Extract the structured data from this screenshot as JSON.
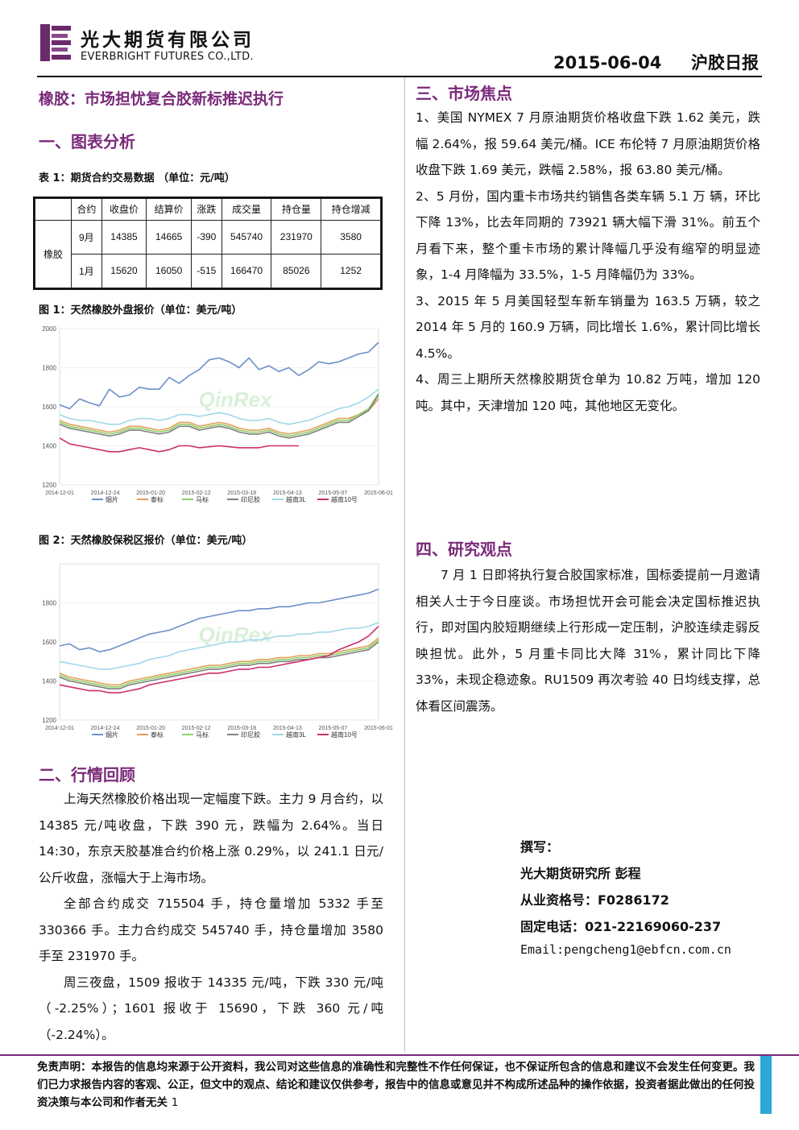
{
  "header": {
    "company_cn": "光大期货有限公司",
    "company_en": "EVERBRIGHT FUTURES CO.,LTD.",
    "date": "2015-06-04",
    "report_type": "沪胶日报"
  },
  "subtitle": "橡胶：市场担忧复合胶新标推迟执行",
  "section1": {
    "title": "一、图表分析",
    "table_caption": "表 1：期货合约交易数据  （单位：元/吨）",
    "table": {
      "headers": [
        "合约",
        "收盘价",
        "结算价",
        "涨跌",
        "成交量",
        "持仓量",
        "持仓增减"
      ],
      "row_label": "橡胶",
      "rows": [
        [
          "9月",
          "14385",
          "14665",
          "-390",
          "545740",
          "231970",
          "3580"
        ],
        [
          "1月",
          "15620",
          "16050",
          "-515",
          "166470",
          "85026",
          "1252"
        ]
      ]
    },
    "fig1_caption": "图 1：天然橡胶外盘报价（单位：美元/吨）",
    "fig2_caption": "图 2：天然橡胶保税区报价（单位：美元/吨）"
  },
  "chart_data": [
    {
      "type": "line",
      "title": "",
      "x_tick_labels": [
        "2014-12-01",
        "2014-12-24",
        "2015-01-20",
        "2015-02-12",
        "2015-03-18",
        "2015-04-13",
        "2015-05-07",
        "2015-06-01"
      ],
      "ylim": [
        1200,
        2000
      ],
      "y_ticks": [
        1200,
        1400,
        1600,
        1800,
        2000
      ],
      "legend": "bottom",
      "watermark": "QinRex",
      "series": [
        {
          "name": "烟片",
          "color": "#6d8fc9",
          "values": [
            1610,
            1590,
            1640,
            1620,
            1605,
            1690,
            1650,
            1660,
            1700,
            1690,
            1690,
            1750,
            1720,
            1760,
            1790,
            1840,
            1850,
            1830,
            1800,
            1850,
            1790,
            1810,
            1780,
            1800,
            1760,
            1790,
            1830,
            1820,
            1830,
            1850,
            1870,
            1880,
            1930
          ]
        },
        {
          "name": "泰标",
          "color": "#e3a05a",
          "values": [
            1530,
            1510,
            1500,
            1490,
            1480,
            1470,
            1480,
            1500,
            1500,
            1490,
            1480,
            1490,
            1520,
            1520,
            1500,
            1510,
            1520,
            1510,
            1490,
            1480,
            1480,
            1490,
            1470,
            1460,
            1470,
            1480,
            1500,
            1520,
            1540,
            1540,
            1560,
            1580,
            1640
          ]
        },
        {
          "name": "马标",
          "color": "#8ed06a",
          "values": [
            1520,
            1500,
            1490,
            1480,
            1470,
            1460,
            1470,
            1490,
            1490,
            1480,
            1470,
            1480,
            1510,
            1510,
            1490,
            1500,
            1510,
            1500,
            1480,
            1470,
            1470,
            1480,
            1460,
            1450,
            1460,
            1470,
            1490,
            1510,
            1530,
            1530,
            1560,
            1590,
            1670
          ]
        },
        {
          "name": "印尼胶",
          "color": "#7f7f7f",
          "values": [
            1510,
            1490,
            1480,
            1470,
            1460,
            1450,
            1460,
            1480,
            1480,
            1470,
            1460,
            1470,
            1500,
            1500,
            1480,
            1490,
            1500,
            1490,
            1470,
            1460,
            1460,
            1470,
            1450,
            1440,
            1450,
            1460,
            1480,
            1500,
            1520,
            1520,
            1550,
            1580,
            1660
          ]
        },
        {
          "name": "越南3L",
          "color": "#9fd8e8",
          "values": [
            1560,
            1540,
            1530,
            1530,
            1520,
            1510,
            1510,
            1530,
            1540,
            1540,
            1530,
            1540,
            1560,
            1560,
            1550,
            1560,
            1570,
            1560,
            1540,
            1530,
            1530,
            1540,
            1520,
            1510,
            1520,
            1530,
            1550,
            1570,
            1590,
            1600,
            1620,
            1650,
            1690
          ]
        },
        {
          "name": "越南10号",
          "color": "#cc2e6e",
          "values": [
            1440,
            1410,
            1400,
            1390,
            1380,
            1370,
            1370,
            1380,
            1390,
            1380,
            1370,
            1380,
            1400,
            1400,
            1390,
            1395,
            1400,
            1395,
            1390,
            1390,
            1390,
            1400,
            1400,
            1400,
            1400
          ]
        }
      ]
    },
    {
      "type": "line",
      "title": "",
      "x_tick_labels": [
        "2014-12-01",
        "2014-12-24",
        "2015-01-20",
        "2015-02-12",
        "2015-03-18",
        "2015-04-13",
        "2015-05-07",
        "2015-06-01"
      ],
      "ylim": [
        1200,
        2000
      ],
      "y_ticks": [
        1200,
        1400,
        1600,
        1800
      ],
      "legend": "bottom",
      "watermark": "QinRex",
      "series": [
        {
          "name": "烟片",
          "color": "#6d8fc9",
          "values": [
            1580,
            1590,
            1560,
            1570,
            1550,
            1560,
            1580,
            1600,
            1620,
            1640,
            1650,
            1660,
            1680,
            1700,
            1720,
            1730,
            1740,
            1750,
            1760,
            1760,
            1770,
            1770,
            1780,
            1780,
            1790,
            1800,
            1800,
            1810,
            1820,
            1830,
            1840,
            1850,
            1870
          ]
        },
        {
          "name": "泰标",
          "color": "#e3a05a",
          "values": [
            1440,
            1420,
            1410,
            1400,
            1390,
            1380,
            1380,
            1400,
            1410,
            1420,
            1430,
            1440,
            1450,
            1460,
            1470,
            1480,
            1480,
            1490,
            1500,
            1500,
            1510,
            1510,
            1520,
            1520,
            1530,
            1530,
            1540,
            1540,
            1550,
            1560,
            1570,
            1580,
            1620
          ]
        },
        {
          "name": "马标",
          "color": "#8ed06a",
          "values": [
            1430,
            1410,
            1400,
            1390,
            1380,
            1370,
            1370,
            1390,
            1400,
            1410,
            1420,
            1430,
            1440,
            1450,
            1460,
            1470,
            1470,
            1480,
            1490,
            1490,
            1500,
            1500,
            1510,
            1510,
            1520,
            1520,
            1530,
            1530,
            1540,
            1550,
            1560,
            1570,
            1610
          ]
        },
        {
          "name": "印尼胶",
          "color": "#7f7f7f",
          "values": [
            1420,
            1400,
            1390,
            1380,
            1370,
            1360,
            1360,
            1380,
            1390,
            1400,
            1410,
            1420,
            1430,
            1440,
            1450,
            1460,
            1460,
            1470,
            1480,
            1480,
            1490,
            1490,
            1500,
            1500,
            1510,
            1510,
            1520,
            1520,
            1530,
            1540,
            1550,
            1560,
            1600
          ]
        },
        {
          "name": "越南3L",
          "color": "#9fd8e8",
          "values": [
            1500,
            1490,
            1480,
            1470,
            1460,
            1460,
            1470,
            1480,
            1490,
            1510,
            1520,
            1530,
            1550,
            1560,
            1570,
            1580,
            1590,
            1600,
            1600,
            1610,
            1610,
            1620,
            1630,
            1630,
            1640,
            1640,
            1650,
            1650,
            1660,
            1670,
            1670,
            1680,
            1700
          ]
        },
        {
          "name": "越南10号",
          "color": "#cc2e6e",
          "values": [
            1380,
            1370,
            1360,
            1350,
            1350,
            1340,
            1340,
            1350,
            1360,
            1380,
            1390,
            1400,
            1410,
            1420,
            1430,
            1440,
            1440,
            1450,
            1460,
            1460,
            1470,
            1470,
            1480,
            1490,
            1500,
            1510,
            1520,
            1530,
            1560,
            1580,
            1600,
            1630,
            1680
          ]
        }
      ]
    }
  ],
  "section2": {
    "title": "二、行情回顾",
    "paragraphs": [
      "上海天然橡胶价格出现一定幅度下跌。主力 9 月合约，以 14385 元/吨收盘，下跌 390 元，跌幅为 2.64%。当日 14:30，东京天胶基准合约价格上涨 0.29%，以 241.1 日元/公斤收盘，涨幅大于上海市场。",
      "全部合约成交 715504 手，持仓量增加 5332 手至 330366 手。主力合约成交 545740 手，持仓量增加 3580 手至 231970 手。",
      "周三夜盘，1509 报收于 14335 元/吨，下跌 330 元/吨（-2.25%）；1601 报收于 15690，下跌 360 元/吨（-2.24%）。"
    ]
  },
  "section3": {
    "title": "三、市场焦点",
    "paragraphs": [
      "1、美国 NYMEX 7 月原油期货价格收盘下跌 1.62 美元，跌幅 2.64%，报 59.64 美元/桶。ICE 布伦特 7 月原油期货价格收盘下跌 1.69 美元，跌幅 2.58%，报 63.80 美元/桶。",
      "2、5 月份，国内重卡市场共约销售各类车辆 5.1 万 辆，环比下降 13%，比去年同期的 73921 辆大幅下滑 31%。前五个月看下来，整个重卡市场的累计降幅几乎没有缩窄的明显迹象，1-4 月降幅为 33.5%，1-5 月降幅仍为 33%。",
      "3、2015 年 5 月美国轻型车新车销量为 163.5 万辆，较之 2014 年 5 月的 160.9 万辆，同比增长 1.6%，累计同比增长 4.5%。",
      "4、周三上期所天然橡胶期货仓单为 10.82 万吨，增加 120 吨。其中，天津增加 120 吨，其他地区无变化。"
    ]
  },
  "section4": {
    "title": "四、研究观点",
    "paragraph": "7 月 1 日即将执行复合胶国家标准，国标委提前一月邀请相关人士于今日座谈。市场担忧开会可能会决定国标推迟执行，即对国内胶短期继续上行形成一定压制，沪胶连续走弱反映担忧。此外，5 月重卡同比大降 31%，累计同比下降 33%，未现企稳迹象。RU1509 再次考验 40 日均线支撑，总体看区间震荡。"
  },
  "author": {
    "label": "撰写：",
    "name": "光大期货研究所 彭程",
    "license": "从业资格号：F0286172",
    "phone": "固定电话：021-22169060-237",
    "email": "Email:pengcheng1@ebfcn.com.cn"
  },
  "footer": {
    "disclaimer": "免责声明：本报告的信息均来源于公开资料，我公司对这些信息的准确性和完整性不作任何保证，也不保证所包含的信息和建议不会发生任何变更。我们已力求报告内容的客观、公正，但文中的观点、结论和建议仅供参考，报告中的信息或意见并不构成所述品种的操作依据，投资者据此做出的任何投资决策与本公司和作者无关",
    "page": "1"
  }
}
